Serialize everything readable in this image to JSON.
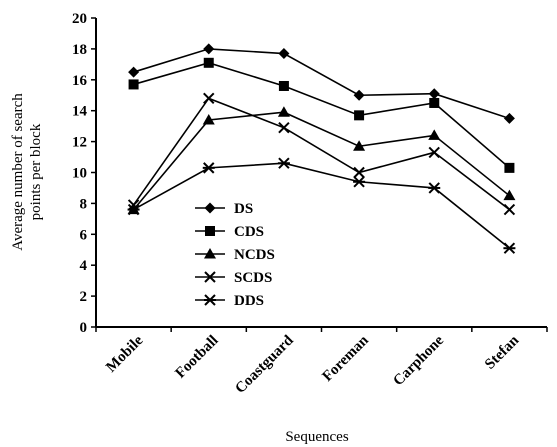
{
  "chart_data": {
    "type": "line",
    "title": "",
    "xlabel": "Sequences",
    "ylabel": "Average number of search points per block",
    "ylabel_lines": [
      "Average number of search",
      "points per block"
    ],
    "categories": [
      "Mobile",
      "Football",
      "Coastguard",
      "Foreman",
      "Carphone",
      "Stefan"
    ],
    "ylim": [
      0,
      20
    ],
    "yticks": [
      0,
      2,
      4,
      6,
      8,
      10,
      12,
      14,
      16,
      18,
      20
    ],
    "grid": false,
    "legend_position": "center-left",
    "series": [
      {
        "name": "DS",
        "marker": "diamond",
        "values": [
          16.5,
          18.0,
          17.7,
          15.0,
          15.1,
          13.5
        ]
      },
      {
        "name": "CDS",
        "marker": "square",
        "values": [
          15.7,
          17.1,
          15.6,
          13.7,
          14.5,
          10.3
        ]
      },
      {
        "name": "NCDS",
        "marker": "triangle",
        "values": [
          7.6,
          13.4,
          13.9,
          11.7,
          12.4,
          8.5
        ]
      },
      {
        "name": "SCDS",
        "marker": "x",
        "values": [
          7.9,
          14.8,
          12.9,
          10.0,
          11.3,
          7.6
        ]
      },
      {
        "name": "DDS",
        "marker": "asterisk",
        "values": [
          7.6,
          10.3,
          10.6,
          9.4,
          9.0,
          5.1
        ]
      }
    ]
  }
}
